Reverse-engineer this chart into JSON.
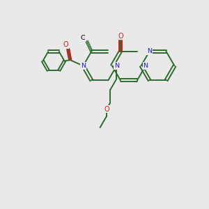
{
  "bg_color": "#e9e9e9",
  "bond_color": "#2d6b2d",
  "N_color": "#1a1acc",
  "O_color": "#cc1a1a",
  "line_width": 1.4,
  "figsize": [
    3.0,
    3.0
  ],
  "dpi": 100,
  "xlim": [
    0,
    10
  ],
  "ylim": [
    0,
    10
  ]
}
